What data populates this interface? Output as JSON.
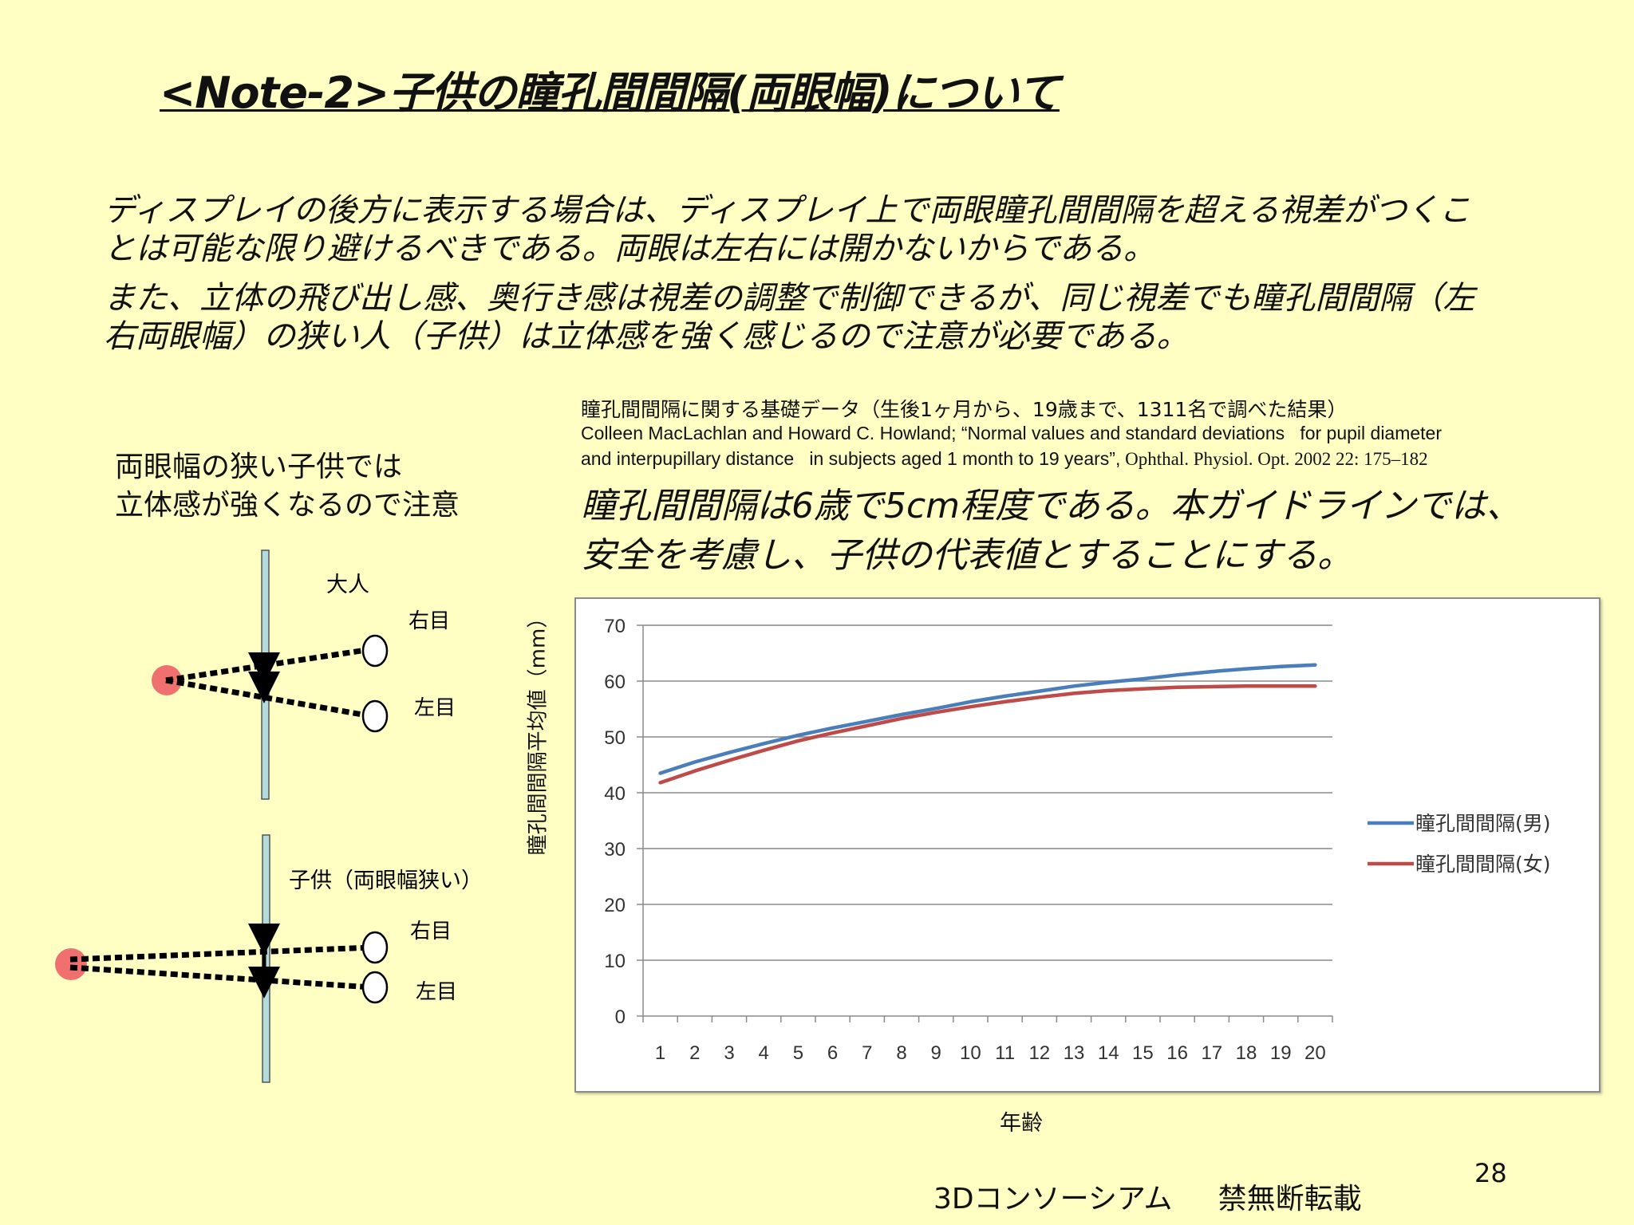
{
  "title": "<Note-2>子供の瞳孔間間隔(両眼幅)について",
  "intro": [
    "ディスプレイの後方に表示する場合は、ディスプレイ上で両眼瞳孔間間隔を超える視差がつくこ",
    "とは可能な限り避けるべきである。両眼は左右には開かないからである。",
    "また、立体の飛び出し感、奥行き感は視差の調整で制御できるが、同じ視差でも瞳孔間間隔（左",
    "右両眼幅）の狭い人（子供）は立体感を強く感じるので注意が必要である。"
  ],
  "reference": {
    "caption": "瞳孔間間隔に関する基礎データ（生後1ヶ月から、19歳まで、1311名で調べた結果）",
    "line1": "Colleen MacLachlan and Howard C. Howland; “Normal values and standard deviations   for pupil diameter",
    "line2_sans": "and interpupillary distance   in subjects aged 1 month to 19 years”,",
    "line2_serif": " Ophthal. Physiol. Opt. 2002 22: 175–182"
  },
  "conclusion": [
    "瞳孔間間隔は6歳で5cm程度である。本ガイドラインでは、",
    "安全を考慮し、子供の代表値とすることにする。"
  ],
  "warning": [
    "両眼幅の狭い子供では",
    "立体感が強くなるので注意"
  ],
  "diagram": {
    "adult_label": "大人",
    "child_label": "子供（両眼幅狭い）",
    "right_eye": "右目",
    "left_eye": "左目",
    "colors": {
      "screen": "#b4dcdc",
      "object": "#f07070"
    }
  },
  "chart_data": {
    "type": "line",
    "title": "",
    "xlabel": "年齢",
    "ylabel": "瞳孔間間隔平均値（mm）",
    "categories": [
      1,
      2,
      3,
      4,
      5,
      6,
      7,
      8,
      9,
      10,
      11,
      12,
      13,
      14,
      15,
      16,
      17,
      18,
      19,
      20
    ],
    "ylim": [
      0,
      70
    ],
    "yticks": [
      0,
      10,
      20,
      30,
      40,
      50,
      60,
      70
    ],
    "grid": true,
    "legend_position": "right",
    "series": [
      {
        "name": "瞳孔間間隔(男)",
        "color": "#4a7ebb",
        "values": [
          43.5,
          45.5,
          47.2,
          48.8,
          50.3,
          51.6,
          52.8,
          54.0,
          55.1,
          56.3,
          57.3,
          58.2,
          59.1,
          59.8,
          60.4,
          61.1,
          61.7,
          62.2,
          62.6,
          62.9
        ]
      },
      {
        "name": "瞳孔間間隔(女)",
        "color": "#be4b48",
        "values": [
          41.8,
          43.9,
          45.8,
          47.6,
          49.3,
          50.7,
          52.0,
          53.3,
          54.4,
          55.4,
          56.3,
          57.1,
          57.8,
          58.3,
          58.6,
          58.9,
          59.0,
          59.1,
          59.1,
          59.1
        ]
      }
    ]
  },
  "page_number": "28",
  "footer": "3Dコンソーシアム     禁無断転載"
}
